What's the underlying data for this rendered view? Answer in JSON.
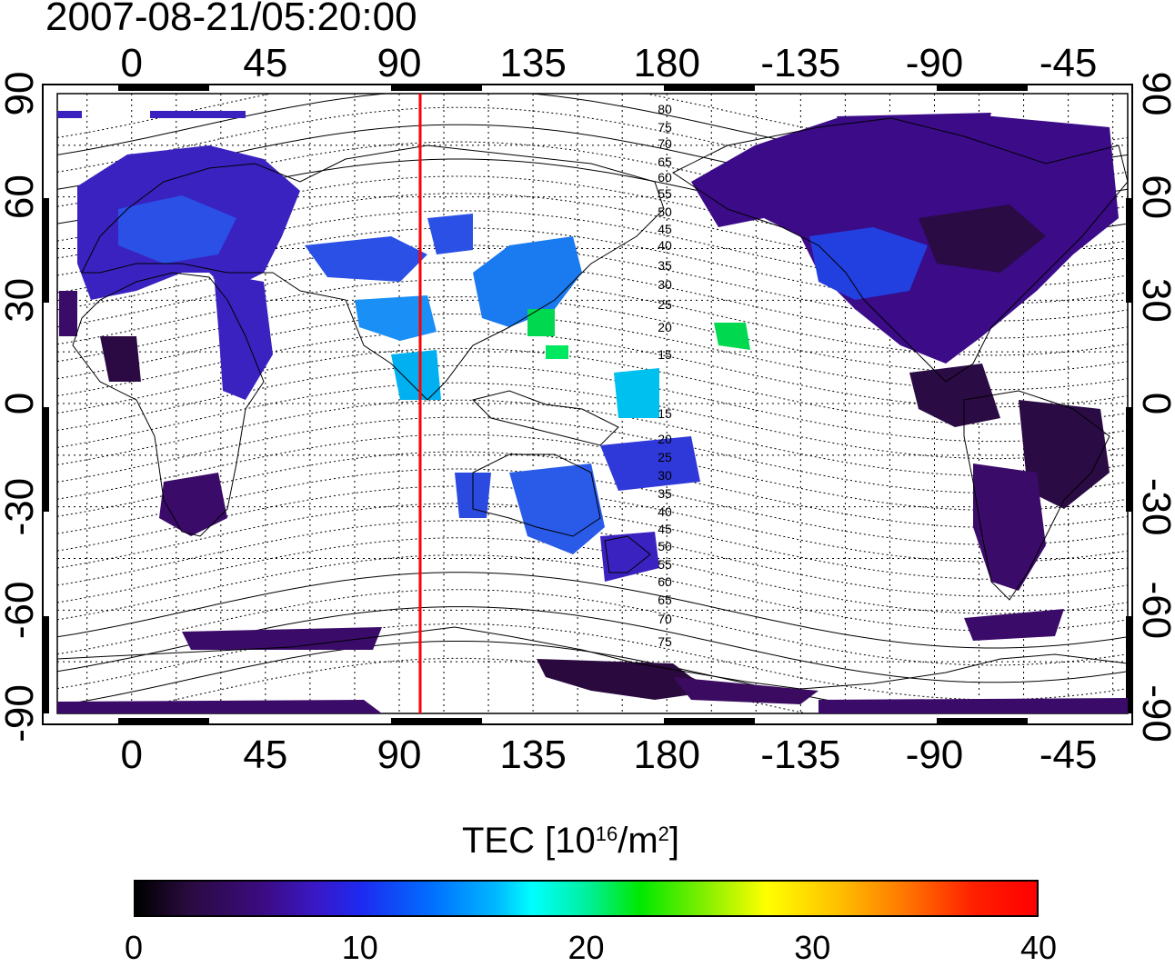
{
  "title": "2007-08-21/05:20:00",
  "map": {
    "projection": "equirectangular",
    "center_longitude": 155,
    "x_tick_labels": [
      "0",
      "45",
      "90",
      "135",
      "180",
      "-135",
      "-90",
      "-45"
    ],
    "y_tick_labels": [
      "90",
      "60",
      "30",
      "0",
      "-30",
      "-60",
      "-90"
    ],
    "meridian_marker": {
      "longitude": 100,
      "color": "#ff0000"
    },
    "magnetic_latitude_labels": [
      "80",
      "75",
      "70",
      "65",
      "60",
      "55",
      "50",
      "45",
      "40",
      "35",
      "30",
      "25",
      "20",
      "15",
      "15",
      "20",
      "25",
      "30",
      "35",
      "40",
      "45",
      "50",
      "55",
      "60",
      "65",
      "70",
      "75"
    ],
    "grid": "dotted"
  },
  "colorbar": {
    "title": "TEC  [10",
    "title_sup1": "16",
    "title_mid": "/m",
    "title_sup2": "2",
    "title_end": "]",
    "ticks": [
      "0",
      "10",
      "20",
      "30",
      "40"
    ],
    "colormap": [
      "#000000",
      "#3b0b80",
      "#1e2af0",
      "#00b8ff",
      "#00ffff",
      "#00e800",
      "#ffff00",
      "#ff7000",
      "#ff0000"
    ]
  }
}
